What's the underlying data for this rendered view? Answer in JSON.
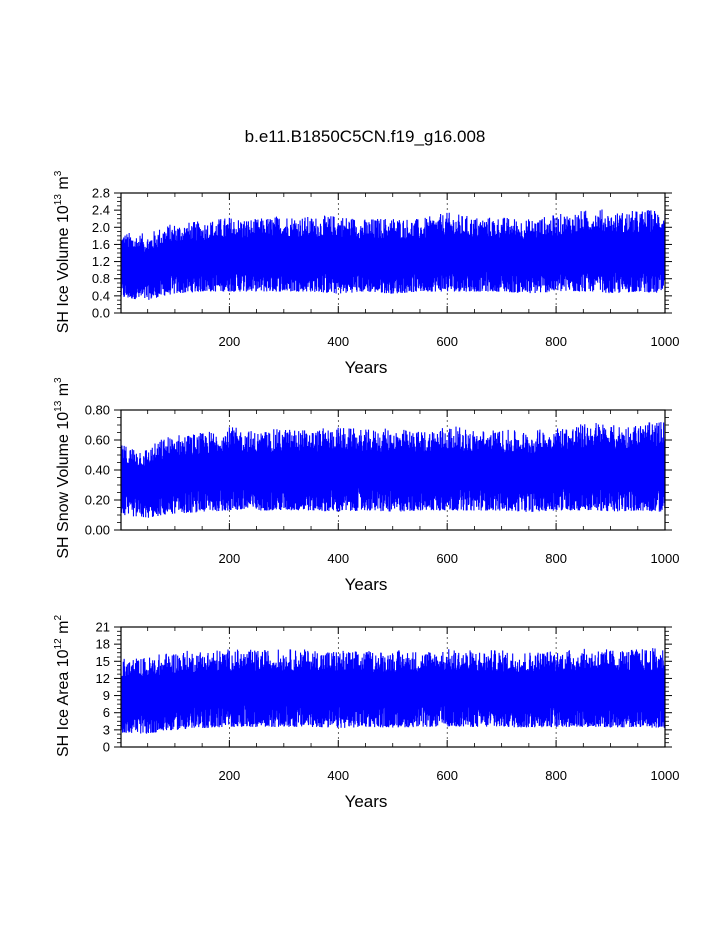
{
  "title": "b.e11.B1850C5CN.f19_g16.008",
  "colors": {
    "series": "#0000ff",
    "axis": "#000000",
    "grid": "#000000"
  },
  "chart_data": [
    {
      "type": "line",
      "series_name": "SH Ice Volume",
      "ylabel": {
        "main": "SH Ice Volume 10",
        "exp": "13",
        "unit": " m",
        "unit_exp": "3"
      },
      "xlabel": "Years",
      "xlim": [
        1,
        1000
      ],
      "ylim": [
        0,
        2.8
      ],
      "xticks": [
        200,
        400,
        600,
        800,
        1000
      ],
      "xtick_labels": [
        "200",
        "400",
        "600",
        "800",
        "1000"
      ],
      "yticks": [
        0,
        0.4,
        0.8,
        1.2,
        1.6,
        2.0,
        2.4,
        2.8
      ],
      "ytick_labels": [
        "0.0",
        "0.4",
        "0.8",
        "1.2",
        "1.6",
        "2.0",
        "2.4",
        "2.8"
      ],
      "grid": "vertical dashed at x ticks",
      "envelope": {
        "years": [
          1,
          50,
          80,
          100,
          150,
          200,
          250,
          300,
          350,
          400,
          450,
          500,
          550,
          600,
          650,
          700,
          750,
          800,
          850,
          880,
          900,
          950,
          1000
        ],
        "max": [
          1.9,
          1.85,
          2.05,
          2.1,
          2.15,
          2.25,
          2.2,
          2.3,
          2.25,
          2.3,
          2.2,
          2.25,
          2.2,
          2.35,
          2.25,
          2.25,
          2.2,
          2.3,
          2.4,
          2.45,
          2.35,
          2.4,
          2.45
        ],
        "min": [
          0.35,
          0.3,
          0.4,
          0.45,
          0.5,
          0.5,
          0.5,
          0.5,
          0.5,
          0.45,
          0.5,
          0.45,
          0.5,
          0.5,
          0.5,
          0.5,
          0.45,
          0.5,
          0.5,
          0.5,
          0.45,
          0.5,
          0.45
        ]
      }
    },
    {
      "type": "line",
      "series_name": "SH Snow Volume",
      "ylabel": {
        "main": "SH Snow Volume 10",
        "exp": "13",
        "unit": " m",
        "unit_exp": "3"
      },
      "xlabel": "Years",
      "xlim": [
        1,
        1000
      ],
      "ylim": [
        0,
        0.8
      ],
      "xticks": [
        200,
        400,
        600,
        800,
        1000
      ],
      "xtick_labels": [
        "200",
        "400",
        "600",
        "800",
        "1000"
      ],
      "yticks": [
        0,
        0.2,
        0.4,
        0.6,
        0.8
      ],
      "ytick_labels": [
        "0.00",
        "0.20",
        "0.40",
        "0.60",
        "0.80"
      ],
      "grid": "vertical dashed at x ticks",
      "envelope": {
        "years": [
          1,
          50,
          80,
          100,
          150,
          200,
          250,
          300,
          350,
          400,
          450,
          500,
          550,
          600,
          650,
          700,
          750,
          800,
          850,
          880,
          900,
          950,
          1000
        ],
        "max": [
          0.57,
          0.55,
          0.62,
          0.64,
          0.65,
          0.69,
          0.66,
          0.68,
          0.67,
          0.69,
          0.67,
          0.68,
          0.66,
          0.7,
          0.67,
          0.67,
          0.66,
          0.69,
          0.71,
          0.73,
          0.7,
          0.71,
          0.73
        ],
        "min": [
          0.1,
          0.08,
          0.1,
          0.11,
          0.12,
          0.13,
          0.13,
          0.13,
          0.13,
          0.12,
          0.13,
          0.12,
          0.13,
          0.13,
          0.13,
          0.13,
          0.12,
          0.13,
          0.13,
          0.13,
          0.12,
          0.13,
          0.12
        ]
      }
    },
    {
      "type": "line",
      "series_name": "SH Ice Area",
      "ylabel": {
        "main": "SH Ice Area 10",
        "exp": "12",
        "unit": " m",
        "unit_exp": "2"
      },
      "xlabel": "Years",
      "xlim": [
        1,
        1000
      ],
      "ylim": [
        0,
        21
      ],
      "xticks": [
        200,
        400,
        600,
        800,
        1000
      ],
      "xtick_labels": [
        "200",
        "400",
        "600",
        "800",
        "1000"
      ],
      "yticks": [
        0,
        3,
        6,
        9,
        12,
        15,
        18,
        21
      ],
      "ytick_labels": [
        "0",
        "3",
        "6",
        "9",
        "12",
        "15",
        "18",
        "21"
      ],
      "grid": "vertical dashed at x ticks",
      "envelope": {
        "years": [
          1,
          50,
          80,
          100,
          150,
          200,
          250,
          300,
          350,
          400,
          450,
          500,
          550,
          600,
          650,
          700,
          750,
          800,
          850,
          880,
          900,
          950,
          1000
        ],
        "max": [
          15.5,
          15.8,
          16.5,
          16.8,
          17.0,
          17.2,
          17.0,
          17.2,
          17.1,
          17.0,
          16.8,
          17.0,
          16.9,
          17.2,
          17.0,
          17.0,
          16.8,
          17.0,
          17.2,
          17.3,
          17.1,
          17.2,
          17.5
        ],
        "min": [
          2.5,
          2.3,
          2.8,
          3.0,
          3.3,
          3.5,
          3.5,
          3.5,
          3.5,
          3.3,
          3.5,
          3.4,
          3.5,
          3.6,
          3.5,
          3.5,
          3.4,
          3.5,
          3.5,
          3.5,
          3.4,
          3.5,
          3.3
        ]
      }
    }
  ]
}
